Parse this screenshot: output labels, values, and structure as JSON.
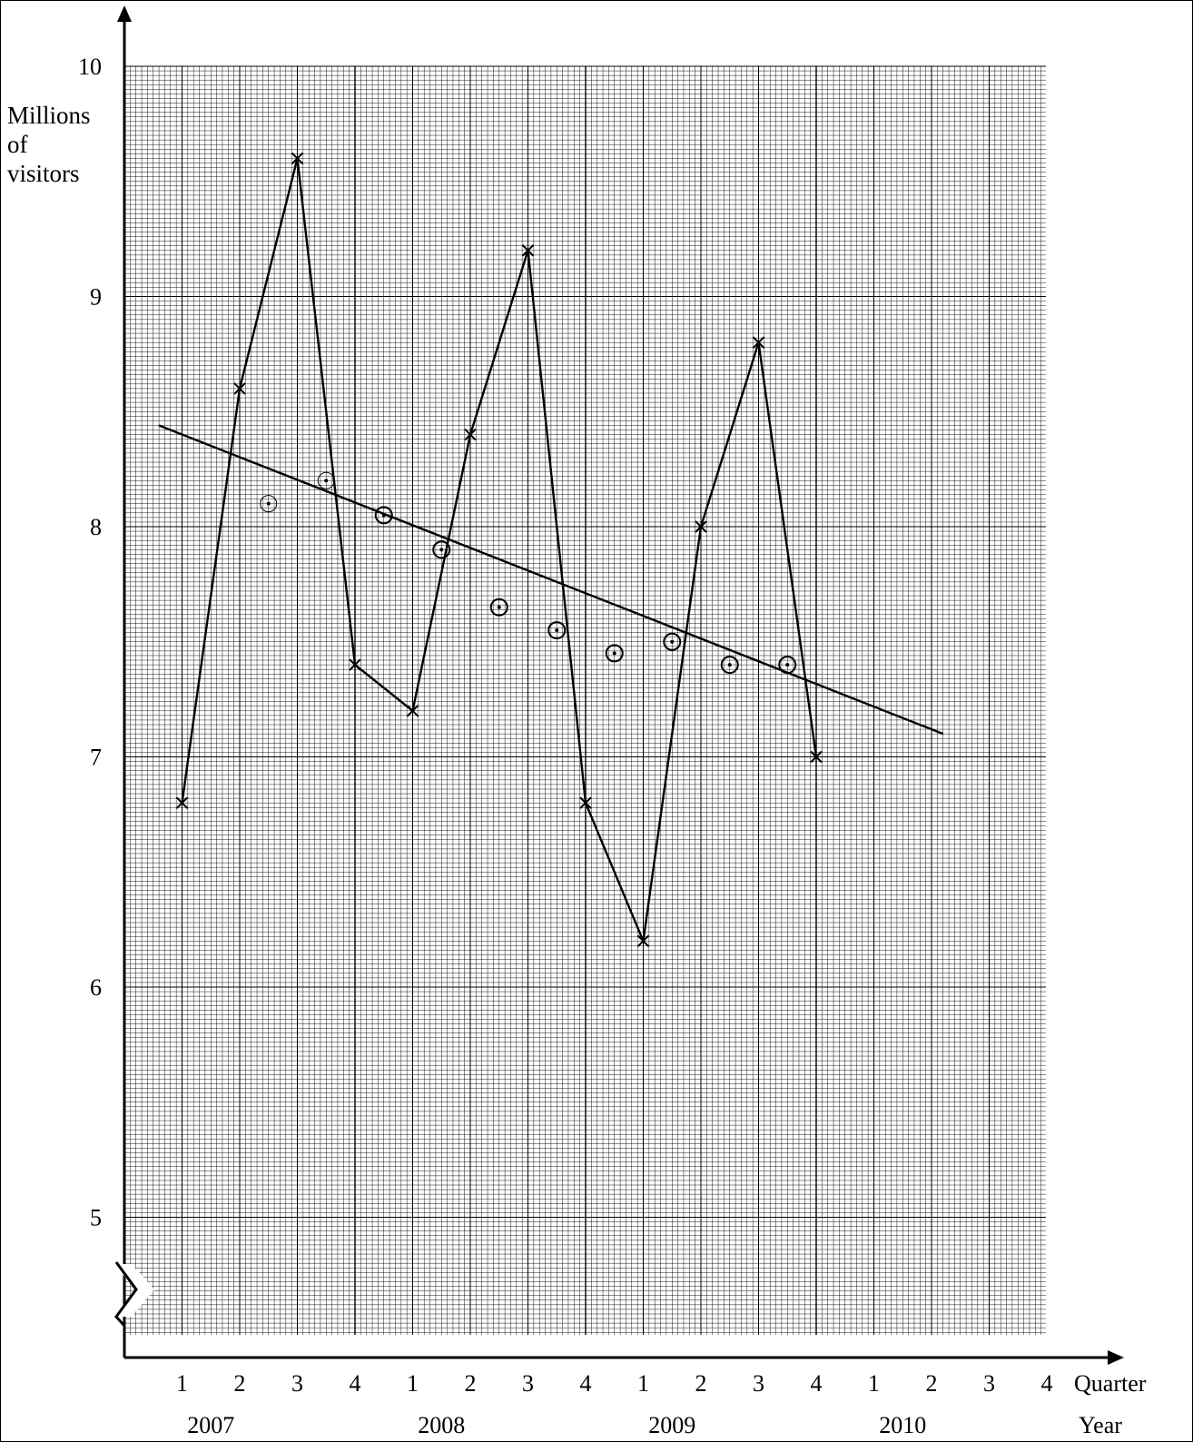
{
  "colors": {
    "ink": "#000000",
    "grid": "#000000",
    "background": "#ffffff"
  },
  "chart_data": {
    "type": "line",
    "title": "",
    "ylabel": [
      "Millions",
      "of",
      "visitors"
    ],
    "xlabel_quarter": "Quarter",
    "xlabel_year": "Year",
    "ylim": [
      4.55,
      10
    ],
    "y_ticks": [
      5,
      6,
      7,
      8,
      9,
      10
    ],
    "y_axis_break": true,
    "grid": true,
    "x_quarters": [
      "1",
      "2",
      "3",
      "4",
      "1",
      "2",
      "3",
      "4",
      "1",
      "2",
      "3",
      "4",
      "1",
      "2",
      "3",
      "4"
    ],
    "x_years": [
      "2007",
      "2008",
      "2009",
      "2010"
    ],
    "series": [
      {
        "marker": "cross",
        "x": [
          1,
          2,
          3,
          4,
          5,
          6,
          7,
          8,
          9,
          10,
          11,
          12
        ],
        "values": [
          6.8,
          8.6,
          9.6,
          7.4,
          7.2,
          8.4,
          9.2,
          6.8,
          6.2,
          8.0,
          8.8,
          7.0
        ]
      },
      {
        "marker": "circled-dot",
        "x": [
          2.5,
          3.5,
          4.5,
          5.5,
          6.5,
          7.5,
          8.5,
          9.5,
          10.5,
          11.5
        ],
        "values": [
          8.1,
          8.2,
          8.05,
          7.9,
          7.65,
          7.55,
          7.45,
          7.5,
          7.4,
          7.4
        ]
      }
    ],
    "trend_line": {
      "x": [
        0.6,
        14.2
      ],
      "values": [
        8.44,
        7.1
      ]
    }
  }
}
